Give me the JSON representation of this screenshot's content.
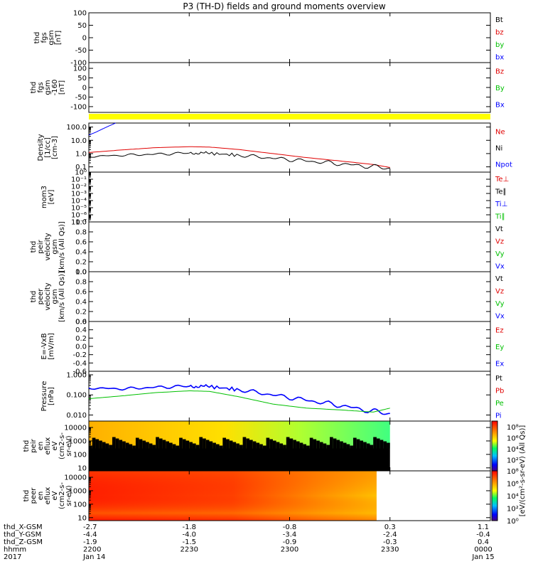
{
  "title": "P3 (TH-D) fields and ground moments overview",
  "colors": {
    "black": "#000000",
    "red": "#e00000",
    "green": "#00c000",
    "blue": "#0000ff",
    "yellow": "#ffff00"
  },
  "panels": [
    {
      "id": "fgs1",
      "ylabel": [
        "thd",
        "fgs",
        "gsm",
        "[nT]"
      ],
      "ylim": [
        -100,
        100
      ],
      "ticks": [
        "100",
        "50",
        "0",
        "-50",
        "-100"
      ],
      "tickvals": [
        100,
        50,
        0,
        -50,
        -100
      ],
      "scale": "linear",
      "legend": [
        {
          "text": "Bt",
          "color": "black"
        },
        {
          "text": "bz",
          "color": "red"
        },
        {
          "text": "by",
          "color": "green"
        },
        {
          "text": "bx",
          "color": "blue"
        }
      ]
    },
    {
      "id": "fgs2",
      "ylabel": [
        "thd",
        "fgs",
        "gsm",
        "-160",
        "[nT]"
      ],
      "ylim": [
        -130,
        130
      ],
      "ticks": [
        "100",
        "50",
        "0",
        "-50",
        "-100"
      ],
      "tickvals": [
        100,
        50,
        0,
        -50,
        -100
      ],
      "scale": "linear",
      "legend": [
        {
          "text": "Bz",
          "color": "red"
        },
        {
          "text": "By",
          "color": "green"
        },
        {
          "text": "Bx",
          "color": "blue"
        }
      ]
    },
    {
      "id": "density",
      "ylabel": [
        "Density",
        "[1/cc]",
        "[cm-3]"
      ],
      "ylim": [
        0.04,
        200
      ],
      "ticks": [
        "100.0",
        "10.0",
        "1.0",
        "0.1"
      ],
      "tickvals": [
        100,
        10,
        1,
        0.1
      ],
      "scale": "log",
      "legend": [
        {
          "text": "Ne",
          "color": "red"
        },
        {
          "text": "Ni",
          "color": "black"
        },
        {
          "text": "Npot",
          "color": "blue"
        }
      ]
    },
    {
      "id": "temp",
      "ylabel": [
        "mom3",
        "[eV]"
      ],
      "ylim": [
        1e-07,
        1
      ],
      "ticks": [
        "10⁰",
        "10⁻¹",
        "10⁻²",
        "10⁻³",
        "10⁻⁴",
        "10⁻⁵",
        "10⁻⁶",
        "10⁻⁷"
      ],
      "tickvals": [
        1,
        0.1,
        0.01,
        0.001,
        0.0001,
        1e-05,
        1e-06,
        1e-07
      ],
      "scale": "log",
      "legend": [
        {
          "text": "Te⊥",
          "color": "red"
        },
        {
          "text": "Te∥",
          "color": "black"
        },
        {
          "text": "Ti⊥",
          "color": "blue"
        },
        {
          "text": "Ti∥",
          "color": "green"
        }
      ]
    },
    {
      "id": "peir_v",
      "ylabel": [
        "thd",
        "peir",
        "velocity",
        "gsm",
        "[km/s (All Qs)]"
      ],
      "ylim": [
        0,
        1
      ],
      "ticks": [
        "1.0",
        "0.8",
        "0.6",
        "0.4",
        "0.2",
        "0.0"
      ],
      "tickvals": [
        1,
        0.8,
        0.6,
        0.4,
        0.2,
        0
      ],
      "scale": "linear",
      "legend": [
        {
          "text": "Vt",
          "color": "black"
        },
        {
          "text": "Vz",
          "color": "red"
        },
        {
          "text": "Vy",
          "color": "green"
        },
        {
          "text": "Vx",
          "color": "blue"
        }
      ]
    },
    {
      "id": "peer_v",
      "ylabel": [
        "thd",
        "peer",
        "velocity",
        "gsm",
        "[km/s (All Qs)]"
      ],
      "ylim": [
        0,
        1
      ],
      "ticks": [
        "1.0",
        "0.8",
        "0.6",
        "0.4",
        "0.2",
        "0.0"
      ],
      "tickvals": [
        1,
        0.8,
        0.6,
        0.4,
        0.2,
        0
      ],
      "scale": "linear",
      "legend": [
        {
          "text": "Vt",
          "color": "black"
        },
        {
          "text": "Vz",
          "color": "red"
        },
        {
          "text": "Vy",
          "color": "green"
        },
        {
          "text": "Vx",
          "color": "blue"
        }
      ]
    },
    {
      "id": "efield",
      "ylabel": [
        "E=-VxB",
        "[mV/m]"
      ],
      "ylim": [
        -0.6,
        0.6
      ],
      "ticks": [
        "0.6",
        "0.4",
        "0.2",
        "0.0",
        "-0.2",
        "-0.4",
        "-0.6"
      ],
      "tickvals": [
        0.6,
        0.4,
        0.2,
        0,
        -0.2,
        -0.4,
        -0.6
      ],
      "scale": "linear",
      "legend": [
        {
          "text": "Ez",
          "color": "red"
        },
        {
          "text": "Ey",
          "color": "green"
        },
        {
          "text": "Ex",
          "color": "blue"
        }
      ]
    },
    {
      "id": "pressure",
      "ylabel": [
        "Pressure",
        "[nPa]"
      ],
      "ylim": [
        0.005,
        1.5
      ],
      "ticks": [
        "1.000",
        "0.100",
        "0.010"
      ],
      "tickvals": [
        1,
        0.1,
        0.01
      ],
      "scale": "log",
      "legend": [
        {
          "text": "Pt",
          "color": "black"
        },
        {
          "text": "Pb",
          "color": "red"
        },
        {
          "text": "Pe",
          "color": "green"
        },
        {
          "text": "Pi",
          "color": "blue"
        }
      ]
    },
    {
      "id": "peir_spec",
      "ylabel": [
        "thd",
        "peir",
        "en",
        "eflux",
        "eV",
        "(cm2-s-",
        "sr-eV)"
      ],
      "ylim": [
        6,
        30000
      ],
      "ticks": [
        "10000",
        "1000",
        "100",
        "10"
      ],
      "tickvals": [
        10000,
        1000,
        100,
        10
      ],
      "scale": "log",
      "colorbar_label": "[eV/(cm²-s-sr-eV) (All Qs)]",
      "colorbar_ticks": [
        "10⁸",
        "10⁶",
        "10⁴",
        "10²"
      ],
      "colorbar_tickvals": [
        8,
        6,
        4,
        2
      ],
      "colorbar_range": [
        0,
        9
      ]
    },
    {
      "id": "peer_spec",
      "ylabel": [
        "thd",
        "peer",
        "en",
        "eflux",
        "eV",
        "(cm2-s-",
        "sr-eV)"
      ],
      "ylim": [
        6,
        30000
      ],
      "ticks": [
        "10000",
        "1000",
        "100",
        "10"
      ],
      "tickvals": [
        10000,
        1000,
        100,
        10
      ],
      "scale": "log",
      "colorbar_label": "[eV/(cm²-s-sr-eV) (All Qs)]",
      "colorbar_ticks": [
        "10⁸",
        "10⁶",
        "10⁴",
        "10²",
        "10⁰"
      ],
      "colorbar_tickvals": [
        8,
        6,
        4,
        2,
        0
      ],
      "colorbar_range": [
        0,
        8
      ]
    }
  ],
  "chart_data": {
    "type": "line",
    "title": "P3 (TH-D) fields and ground moments overview",
    "x_range_minutes": [
      0,
      120
    ],
    "x_ticks_minutes": [
      0,
      30,
      60,
      90,
      120
    ],
    "x_axis_rows": [
      {
        "label": "thd_X-GSM",
        "values": [
          "-2.7",
          "-1.8",
          "-0.8",
          "0.3",
          "1.1"
        ]
      },
      {
        "label": "thd_Y-GSM",
        "values": [
          "-4.4",
          "-4.0",
          "-3.4",
          "-2.4",
          "-0.4"
        ]
      },
      {
        "label": "thd_Z-GSM",
        "values": [
          "-1.9",
          "-1.5",
          "-0.9",
          "-0.3",
          "0.4"
        ]
      },
      {
        "label": "hhmm",
        "values": [
          "2200",
          "2230",
          "2300",
          "2330",
          "0000"
        ]
      },
      {
        "label": "2017",
        "values": [
          "Jan 14",
          "",
          "",
          "",
          "Jan 15"
        ]
      }
    ],
    "mode_bar": {
      "color": "yellow",
      "x_range_minutes": [
        0,
        120
      ]
    },
    "series": [
      {
        "panel": "density",
        "name": "Ne",
        "color": "red",
        "x": [
          0,
          10,
          20,
          30,
          36,
          45,
          55,
          65,
          75,
          85,
          90
        ],
        "y": [
          1.2,
          1.9,
          2.8,
          3.3,
          3.1,
          2.0,
          1.0,
          0.5,
          0.28,
          0.15,
          0.09
        ]
      },
      {
        "panel": "density",
        "name": "Ni",
        "color": "black",
        "x": [
          0,
          10,
          20,
          30,
          36,
          45,
          55,
          65,
          75,
          85,
          90
        ],
        "y": [
          0.6,
          0.75,
          0.9,
          1.1,
          1.05,
          0.75,
          0.45,
          0.28,
          0.17,
          0.1,
          0.08
        ]
      },
      {
        "panel": "density",
        "name": "Npot",
        "color": "blue",
        "x": [
          0,
          2,
          4,
          6,
          8
        ],
        "y": [
          25,
          40,
          70,
          120,
          200
        ]
      },
      {
        "panel": "pressure",
        "name": "Pi",
        "color": "blue",
        "x": [
          0,
          10,
          20,
          30,
          36,
          45,
          55,
          65,
          75,
          85,
          90
        ],
        "y": [
          0.22,
          0.2,
          0.24,
          0.27,
          0.26,
          0.18,
          0.1,
          0.055,
          0.03,
          0.015,
          0.012
        ]
      },
      {
        "panel": "pressure",
        "name": "Pe",
        "color": "green",
        "x": [
          0,
          10,
          20,
          30,
          36,
          45,
          55,
          65,
          75,
          85,
          90
        ],
        "y": [
          0.065,
          0.09,
          0.13,
          0.16,
          0.15,
          0.08,
          0.035,
          0.022,
          0.018,
          0.014,
          0.022
        ]
      }
    ],
    "spectrograms": [
      {
        "panel": "peir_spec",
        "x_range_minutes": [
          0,
          90
        ]
      },
      {
        "panel": "peer_spec",
        "x_range_minutes": [
          0,
          86
        ]
      }
    ]
  }
}
